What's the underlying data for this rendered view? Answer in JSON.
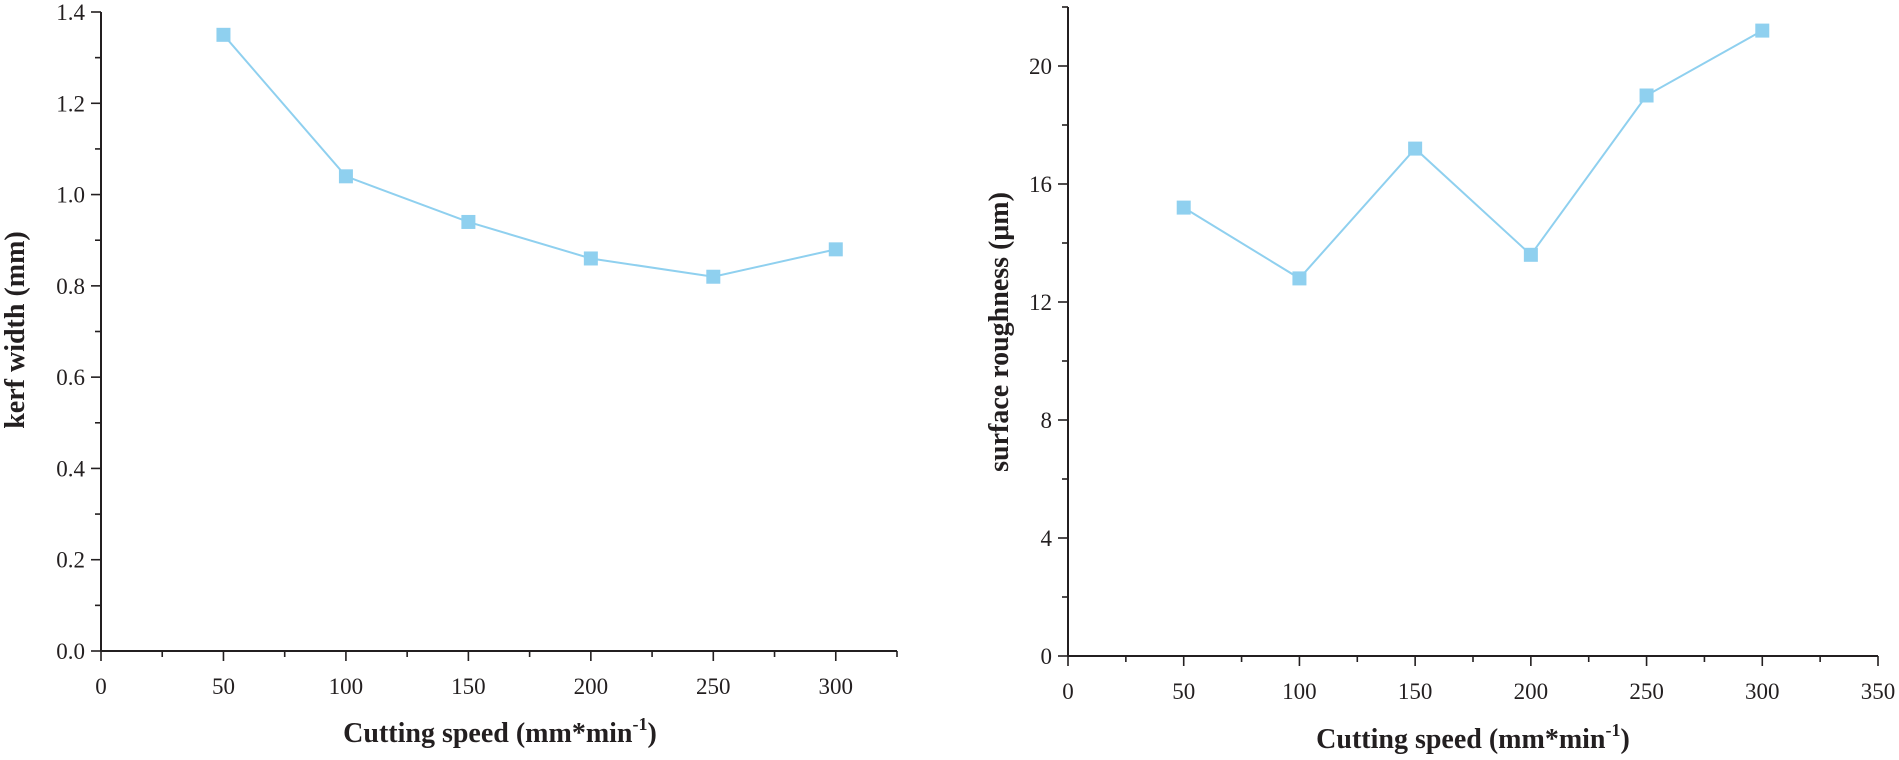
{
  "chart_data": [
    {
      "type": "line",
      "title": "",
      "xlabel": "Cutting speed (mm*min",
      "xlabel_sup": "-1",
      "xlabel_end": ")",
      "ylabel": "kerf width (mm)",
      "xlim": [
        0,
        325
      ],
      "ylim": [
        0,
        1.4
      ],
      "xticks": [
        0,
        50,
        100,
        150,
        200,
        250,
        300
      ],
      "xtick_labels": [
        "0",
        "50",
        "100",
        "150",
        "200",
        "250",
        "300"
      ],
      "yticks": [
        0.0,
        0.2,
        0.4,
        0.6,
        0.8,
        1.0,
        1.2,
        1.4
      ],
      "ytick_labels": [
        "0.0",
        "0.2",
        "0.4",
        "0.6",
        "0.8",
        "1.0",
        "1.2",
        "1.4"
      ],
      "grid": false,
      "color": "#8fd0ef",
      "marker": "square",
      "series": [
        {
          "name": "kerf width",
          "x": [
            50,
            100,
            150,
            200,
            250,
            300
          ],
          "values": [
            1.35,
            1.04,
            0.94,
            0.86,
            0.82,
            0.88
          ]
        }
      ]
    },
    {
      "type": "line",
      "title": "",
      "xlabel": "Cutting speed (mm*min",
      "xlabel_sup": "-1",
      "xlabel_end": ")",
      "ylabel": "surface roughness (μm)",
      "xlim": [
        0,
        350
      ],
      "ylim": [
        0,
        22
      ],
      "xticks": [
        0,
        50,
        100,
        150,
        200,
        250,
        300,
        350
      ],
      "xtick_labels": [
        "0",
        "50",
        "100",
        "150",
        "200",
        "250",
        "300",
        "350"
      ],
      "yticks": [
        0,
        4,
        8,
        12,
        16,
        20
      ],
      "ytick_labels": [
        "0",
        "4",
        "8",
        "12",
        "16",
        "20"
      ],
      "grid": false,
      "color": "#8fd0ef",
      "marker": "square",
      "series": [
        {
          "name": "surface roughness",
          "x": [
            50,
            100,
            150,
            200,
            250,
            300
          ],
          "values": [
            15.2,
            12.8,
            17.2,
            13.6,
            19.0,
            21.2
          ]
        }
      ]
    }
  ]
}
